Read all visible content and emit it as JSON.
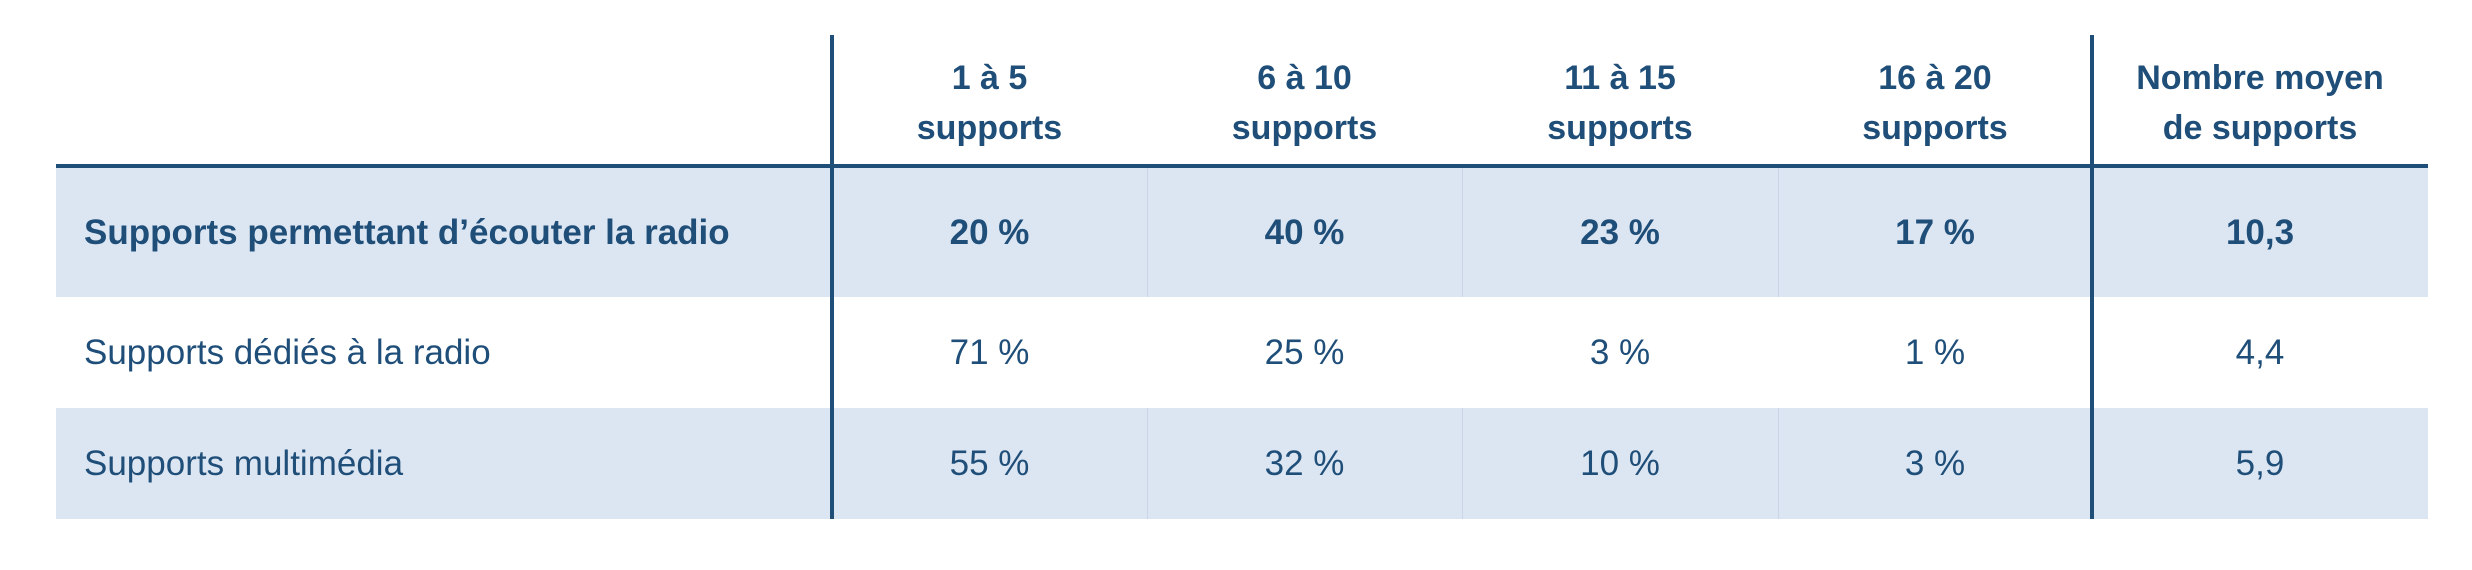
{
  "chart_data": {
    "type": "table",
    "columns": [
      "",
      "1 à 5|supports",
      "6 à 10|supports",
      "11 à 15|supports",
      "16 à 20|supports",
      "Nombre moyen|de supports"
    ],
    "header": [
      {
        "line1": "",
        "line2": ""
      },
      {
        "line1": "1 à 5",
        "line2": "supports"
      },
      {
        "line1": "6 à 10",
        "line2": "supports"
      },
      {
        "line1": "11 à 15",
        "line2": "supports"
      },
      {
        "line1": "16 à 20",
        "line2": "supports"
      },
      {
        "line1": "Nombre moyen",
        "line2": "de supports"
      }
    ],
    "rows": [
      {
        "label": "Supports permettant d’écouter la radio",
        "cells": [
          "20 %",
          "40 %",
          "23 %",
          "17 %",
          "10,3"
        ]
      },
      {
        "label": "Supports dédiés à la radio",
        "cells": [
          "71 %",
          "25 %",
          "3 %",
          "1 %",
          "4,4"
        ]
      },
      {
        "label": "Supports multimédia",
        "cells": [
          "55 %",
          "32 %",
          "10 %",
          "3 %",
          "5,9"
        ]
      }
    ],
    "values": [
      [
        20,
        40,
        23,
        17,
        10.3
      ],
      [
        71,
        25,
        3,
        1,
        4.4
      ],
      [
        55,
        32,
        10,
        3,
        5.9
      ]
    ]
  },
  "colors": {
    "text": "#1f4e79",
    "rule": "#1f4e79",
    "shaded_row": "#dce6f2"
  }
}
